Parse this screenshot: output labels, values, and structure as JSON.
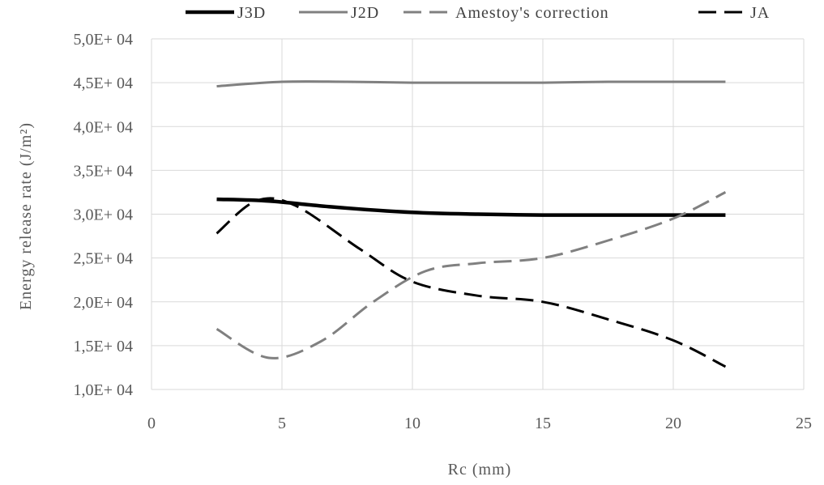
{
  "chart_data": {
    "type": "line",
    "title": "",
    "xlabel": "Rc (mm)",
    "ylabel": "Energy release rate (J/m²)",
    "xlim": [
      0,
      25
    ],
    "ylim": [
      10000,
      50000
    ],
    "x_ticks": [
      0,
      5,
      10,
      15,
      20,
      25
    ],
    "y_ticks": [
      10000,
      15000,
      20000,
      25000,
      30000,
      35000,
      40000,
      45000,
      50000
    ],
    "x_tick_labels": [
      "0",
      "5",
      "10",
      "15",
      "20",
      "25"
    ],
    "y_tick_labels": [
      "1,0E+ 04",
      "1,5E+ 04",
      "2,0E+ 04",
      "2,5E+ 04",
      "3,0E+ 04",
      "3,5E+ 04",
      "4,0E+ 04",
      "4,5E+ 04",
      "5,0E+ 04"
    ],
    "grid": "vertical and horizontal",
    "legend_position": "top",
    "series": [
      {
        "name": "J3D",
        "color": "#000000",
        "dash": "solid",
        "points": [
          [
            2.5,
            31700
          ],
          [
            4.5,
            31500
          ],
          [
            7,
            30800
          ],
          [
            10,
            30200
          ],
          [
            12.5,
            30000
          ],
          [
            15,
            29900
          ],
          [
            17.5,
            29900
          ],
          [
            20,
            29900
          ],
          [
            22,
            29900
          ]
        ]
      },
      {
        "name": "J2D",
        "color": "#808080",
        "dash": "solid",
        "points": [
          [
            2.5,
            44600
          ],
          [
            5,
            45100
          ],
          [
            7.5,
            45100
          ],
          [
            10,
            45000
          ],
          [
            12.5,
            45000
          ],
          [
            15,
            45000
          ],
          [
            17.5,
            45100
          ],
          [
            20,
            45100
          ],
          [
            22,
            45100
          ]
        ]
      },
      {
        "name": "Amestoy's correction",
        "color": "#808080",
        "dash": "dashed",
        "points": [
          [
            2.5,
            16900
          ],
          [
            4.5,
            13600
          ],
          [
            6.5,
            15500
          ],
          [
            8.5,
            20000
          ],
          [
            10.5,
            23500
          ],
          [
            12.5,
            24400
          ],
          [
            15,
            25000
          ],
          [
            17.5,
            27000
          ],
          [
            20,
            29500
          ],
          [
            22,
            32500
          ]
        ]
      },
      {
        "name": "JA",
        "color": "#000000",
        "dash": "dashed",
        "points": [
          [
            2.5,
            27800
          ],
          [
            4,
            31500
          ],
          [
            5.5,
            31000
          ],
          [
            8,
            26000
          ],
          [
            10,
            22300
          ],
          [
            12.5,
            20700
          ],
          [
            15,
            20000
          ],
          [
            17.5,
            18000
          ],
          [
            20,
            15600
          ],
          [
            22,
            12600
          ]
        ]
      }
    ]
  }
}
